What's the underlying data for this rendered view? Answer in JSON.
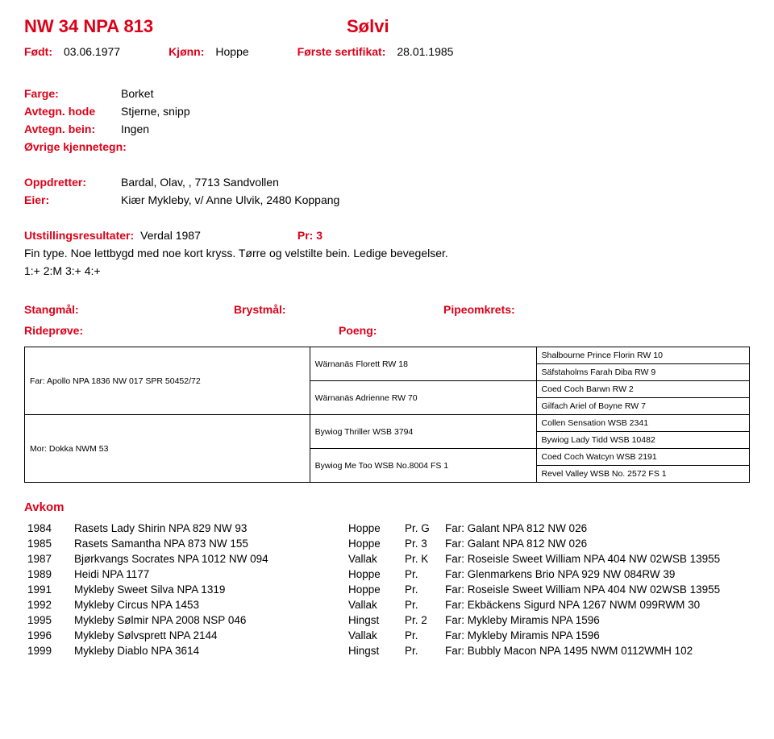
{
  "header": {
    "reg": "NW 34   NPA 813",
    "name": "Sølvi"
  },
  "meta": {
    "born_label": "Født:",
    "born": "03.06.1977",
    "sex_label": "Kjønn:",
    "sex": "Hoppe",
    "cert_label": "Første sertifikat:",
    "cert": "28.01.1985"
  },
  "info": {
    "color_label": "Farge:",
    "color": "Borket",
    "head_label": "Avtegn. hode",
    "head": "Stjerne, snipp",
    "leg_label": "Avtegn. bein:",
    "leg": "Ingen",
    "other_label": "Øvrige kjennetegn:"
  },
  "breeder": {
    "breeder_label": "Oppdretter:",
    "breeder": "Bardal, Olav, , 7713 Sandvollen",
    "owner_label": "Eier:",
    "owner": "Kiær Mykleby, v/ Anne Ulvik, 2480 Koppang"
  },
  "show": {
    "res_label": "Utstillingsresultater:",
    "res_value": "Verdal 1987",
    "pr_label": "Pr: 3",
    "desc1": "Fin type. Noe lettbygd med noe kort kryss. Tørre og velstilte bein. Ledige bevegelser.",
    "desc2": "1:+  2:M  3:+  4:+"
  },
  "meas": {
    "stang": "Stangmål:",
    "bryst": "Brystmål:",
    "pipe": "Pipeomkrets:",
    "ride": "Rideprøve:",
    "poeng": "Poeng:"
  },
  "pedigree": {
    "sire": "Far: Apollo NPA 1836 NW 017 SPR 50452/72",
    "dam": "Mor: Dokka NWM 53",
    "ss": "Wärnanäs Florett  RW 18",
    "sd": "Wärnanäs Adrienne  RW 70",
    "ds": "Bywiog Thriller  WSB 3794",
    "dd": "Bywiog Me Too  WSB No.8004 FS 1",
    "sss": "Shalbourne Prince Florin  RW 10",
    "ssd": "Säfstaholms Farah Diba  RW 9",
    "sds": "Coed Coch Barwn  RW 2",
    "sdd": "Gilfach Ariel of Boyne  RW 7",
    "dss": "Collen Sensation  WSB 2341",
    "dsd": "Bywiog Lady Tidd  WSB 10482",
    "dds": "Coed Coch Watcyn  WSB 2191",
    "ddd": "Revel Valley  WSB No. 2572 FS 1"
  },
  "avkom_label": "Avkom",
  "offspring": [
    {
      "year": "1984",
      "name": "Rasets Lady Shirin NPA 829 NW 93",
      "sex": "Hoppe",
      "grade": "Pr. G",
      "sire": "Far: Galant NPA 812 NW 026"
    },
    {
      "year": "1985",
      "name": "Rasets Samantha NPA 873 NW 155",
      "sex": "Hoppe",
      "grade": "Pr. 3",
      "sire": "Far: Galant NPA 812 NW 026"
    },
    {
      "year": "1987",
      "name": "Bjørkvangs Socrates NPA 1012 NW 094",
      "sex": "Vallak",
      "grade": "Pr. K",
      "sire": "Far: Roseisle Sweet William NPA 404 NW 02WSB 13955"
    },
    {
      "year": "1989",
      "name": "Heidi NPA 1177",
      "sex": "Hoppe",
      "grade": "Pr.",
      "sire": "Far: Glenmarkens Brio NPA 929 NW 084RW 39"
    },
    {
      "year": "1991",
      "name": "Mykleby Sweet Silva NPA 1319",
      "sex": "Hoppe",
      "grade": "Pr.",
      "sire": "Far: Roseisle Sweet William NPA 404 NW 02WSB 13955"
    },
    {
      "year": "1992",
      "name": "Mykleby Circus NPA 1453",
      "sex": "Vallak",
      "grade": "Pr.",
      "sire": "Far: Ekbäckens Sigurd NPA 1267 NWM 099RWM 30"
    },
    {
      "year": "1995",
      "name": "Mykleby Sølmir NPA 2008 NSP 046",
      "sex": "Hingst",
      "grade": "Pr. 2",
      "sire": "Far: Mykleby Miramis NPA 1596"
    },
    {
      "year": "1996",
      "name": "Mykleby Sølvsprett NPA 2144",
      "sex": "Vallak",
      "grade": "Pr.",
      "sire": "Far: Mykleby Miramis NPA 1596"
    },
    {
      "year": "1999",
      "name": "Mykleby Diablo NPA 3614",
      "sex": "Hingst",
      "grade": "Pr.",
      "sire": "Far: Bubbly Macon NPA 1495 NWM 0112WMH 102"
    }
  ]
}
